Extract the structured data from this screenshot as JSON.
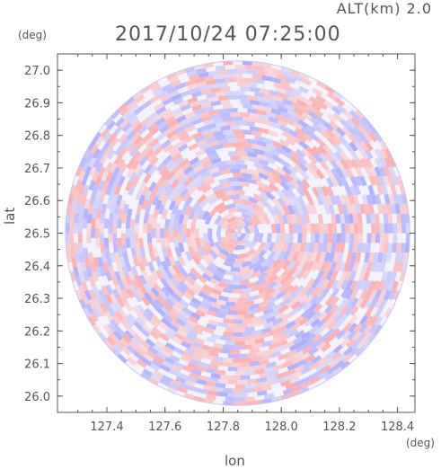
{
  "header": {
    "altitude_label": "ALT(km) 2.0",
    "datetime": "2017/10/24 07:25:00"
  },
  "chart_data": {
    "type": "heatmap",
    "title": "2017/10/24 07:25:00",
    "subtitle": "ALT(km) 2.0",
    "xlabel": "lon",
    "ylabel": "lat",
    "x_unit": "(deg)",
    "y_unit": "(deg)",
    "xlim": [
      127.23,
      128.46
    ],
    "ylim": [
      25.95,
      27.05
    ],
    "xticks": [
      "127.4",
      "127.6",
      "127.8",
      "128.0",
      "128.2",
      "128.4"
    ],
    "yticks": [
      "26.0",
      "26.1",
      "26.2",
      "26.3",
      "26.4",
      "26.5",
      "26.6",
      "26.7",
      "26.8",
      "26.9",
      "27.0"
    ],
    "center": [
      127.85,
      26.5
    ],
    "radius_deg_lat": 0.53,
    "colors": {
      "positive": "#ff9c9c",
      "negative": "#9c9cff",
      "axis": "#555555"
    },
    "grid": false
  }
}
